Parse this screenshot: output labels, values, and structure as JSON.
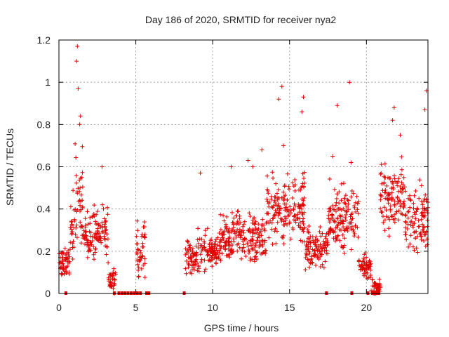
{
  "chart_data": {
    "type": "scatter",
    "title": "Day 186 of 2020, SRMTID for receiver nya2",
    "xlabel": "GPS time / hours",
    "ylabel": "SRMTID / TECUs",
    "xlim": [
      0,
      24
    ],
    "ylim": [
      0,
      1.2
    ],
    "xticks": [
      0,
      5,
      10,
      15,
      20
    ],
    "xtick_labels": [
      "0",
      "5",
      "10",
      "15",
      "20"
    ],
    "yticks": [
      0,
      0.2,
      0.4,
      0.6,
      0.8,
      1.0,
      1.2
    ],
    "ytick_labels": [
      "0",
      "0.2",
      "0.4",
      "0.6",
      "0.8",
      "1",
      "1.2"
    ],
    "grid": true,
    "marker": "+",
    "color": "#e00000",
    "segments": [
      {
        "x0": 0.0,
        "x1": 0.35,
        "base": 0.14,
        "spread": 0.05
      },
      {
        "x0": 0.35,
        "x1": 0.7,
        "base": 0.15,
        "spread": 0.07
      },
      {
        "x0": 0.7,
        "x1": 1.0,
        "base": 0.3,
        "spread": 0.14
      },
      {
        "x0": 1.0,
        "x1": 1.6,
        "base": 0.42,
        "spread": 0.18
      },
      {
        "x0": 1.6,
        "x1": 2.2,
        "base": 0.26,
        "spread": 0.08
      },
      {
        "x0": 2.2,
        "x1": 3.2,
        "base": 0.3,
        "spread": 0.1
      },
      {
        "x0": 3.2,
        "x1": 3.7,
        "base": 0.06,
        "spread": 0.06
      },
      {
        "x0": 5.0,
        "x1": 5.6,
        "base": 0.22,
        "spread": 0.12
      },
      {
        "x0": 8.2,
        "x1": 9.0,
        "base": 0.18,
        "spread": 0.06
      },
      {
        "x0": 9.0,
        "x1": 10.5,
        "base": 0.2,
        "spread": 0.07
      },
      {
        "x0": 10.5,
        "x1": 13.5,
        "base": 0.27,
        "spread": 0.09
      },
      {
        "x0": 13.5,
        "x1": 16.0,
        "base": 0.4,
        "spread": 0.12
      },
      {
        "x0": 16.0,
        "x1": 17.5,
        "base": 0.22,
        "spread": 0.07
      },
      {
        "x0": 17.5,
        "x1": 19.5,
        "base": 0.36,
        "spread": 0.12
      },
      {
        "x0": 19.5,
        "x1": 20.3,
        "base": 0.12,
        "spread": 0.05
      },
      {
        "x0": 20.3,
        "x1": 20.9,
        "base": 0.03,
        "spread": 0.03
      },
      {
        "x0": 20.9,
        "x1": 22.5,
        "base": 0.45,
        "spread": 0.12
      },
      {
        "x0": 22.5,
        "x1": 24.0,
        "base": 0.36,
        "spread": 0.12
      }
    ],
    "outliers": [
      [
        1.2,
        1.17
      ],
      [
        1.15,
        1.1
      ],
      [
        1.25,
        0.97
      ],
      [
        1.4,
        0.84
      ],
      [
        1.35,
        0.8
      ],
      [
        2.8,
        0.6
      ],
      [
        9.2,
        0.57
      ],
      [
        14.5,
        0.98
      ],
      [
        14.3,
        0.92
      ],
      [
        15.9,
        0.93
      ],
      [
        15.8,
        0.86
      ],
      [
        18.1,
        0.89
      ],
      [
        18.9,
        1.0
      ],
      [
        23.9,
        0.96
      ],
      [
        23.8,
        0.87
      ],
      [
        21.8,
        0.88
      ],
      [
        21.7,
        0.82
      ],
      [
        12.6,
        0.6
      ],
      [
        13.2,
        0.68
      ],
      [
        17.8,
        0.65
      ],
      [
        22.2,
        0.75
      ],
      [
        14.6,
        0.7
      ],
      [
        19.0,
        0.62
      ],
      [
        12.3,
        0.63
      ],
      [
        11.2,
        0.6
      ]
    ],
    "zero_markers": [
      0.45,
      3.6,
      3.9,
      4.1,
      4.3,
      4.5,
      4.7,
      4.9,
      5.1,
      5.3,
      5.7,
      5.85,
      8.15,
      17.4,
      19.05,
      20.1,
      20.4,
      20.6,
      20.8
    ]
  }
}
